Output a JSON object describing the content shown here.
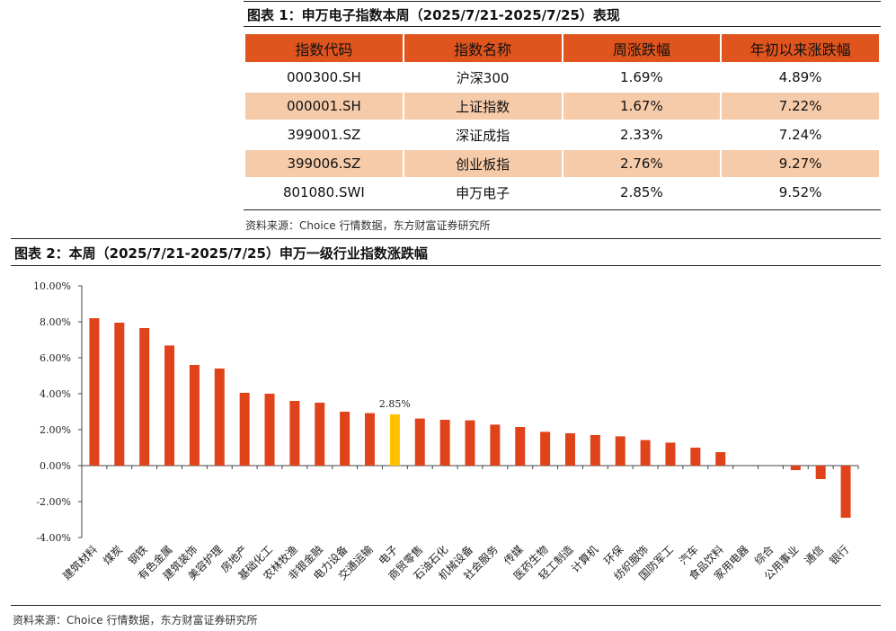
{
  "table1": {
    "heading": "图表 1：申万电子指数本周（2025/7/21-2025/7/25）表现",
    "columns": [
      "指数代码",
      "指数名称",
      "周涨跌幅",
      "年初以来涨跌幅"
    ],
    "rows": [
      [
        "000300.SH",
        "沪深300",
        "1.69%",
        "4.89%"
      ],
      [
        "000001.SH",
        "上证指数",
        "1.67%",
        "7.22%"
      ],
      [
        "399001.SZ",
        "深证成指",
        "2.33%",
        "7.24%"
      ],
      [
        "399006.SZ",
        "创业板指",
        "2.76%",
        "9.27%"
      ],
      [
        "801080.SWI",
        "申万电子",
        "2.85%",
        "9.52%"
      ]
    ],
    "source": "资料来源：Choice 行情数据，东方财富证券研究所",
    "colors": {
      "header": "#e0541e",
      "band": "#f6cba9"
    }
  },
  "figure2": {
    "heading": "图表 2：本周（2025/7/21-2025/7/25）申万一级行业指数涨跌幅",
    "source": "资料来源：Choice 行情数据，东方财富证券研究所"
  },
  "chart_data": {
    "type": "bar",
    "categories": [
      "建筑材料",
      "煤炭",
      "钢铁",
      "有色金属",
      "建筑装饰",
      "美容护理",
      "房地产",
      "基础化工",
      "农林牧渔",
      "非银金融",
      "电力设备",
      "交通运输",
      "电子",
      "商贸零售",
      "石油石化",
      "机械设备",
      "社会服务",
      "传媒",
      "医药生物",
      "轻工制造",
      "计算机",
      "环保",
      "纺织服饰",
      "国防军工",
      "汽车",
      "食品饮料",
      "家用电器",
      "综合",
      "公用事业",
      "通信",
      "银行"
    ],
    "values": [
      8.2,
      7.95,
      7.65,
      6.68,
      5.6,
      5.4,
      4.05,
      4.0,
      3.6,
      3.5,
      3.0,
      2.92,
      2.85,
      2.62,
      2.55,
      2.52,
      2.28,
      2.15,
      1.88,
      1.8,
      1.7,
      1.63,
      1.42,
      1.28,
      1.0,
      0.75,
      0.0,
      0.0,
      -0.25,
      -0.75,
      -2.9
    ],
    "highlight": {
      "category": "电子",
      "label": "2.85%",
      "color": "#ffc000"
    },
    "bar_color": "#e0431a",
    "ylim": [
      -4,
      10
    ],
    "y_ticks": [
      "-4.00%",
      "-2.00%",
      "0.00%",
      "2.00%",
      "4.00%",
      "6.00%",
      "8.00%",
      "10.00%"
    ],
    "ytick_values": [
      -4,
      -2,
      0,
      2,
      4,
      6,
      8,
      10
    ],
    "grid": false,
    "legend": "none"
  }
}
